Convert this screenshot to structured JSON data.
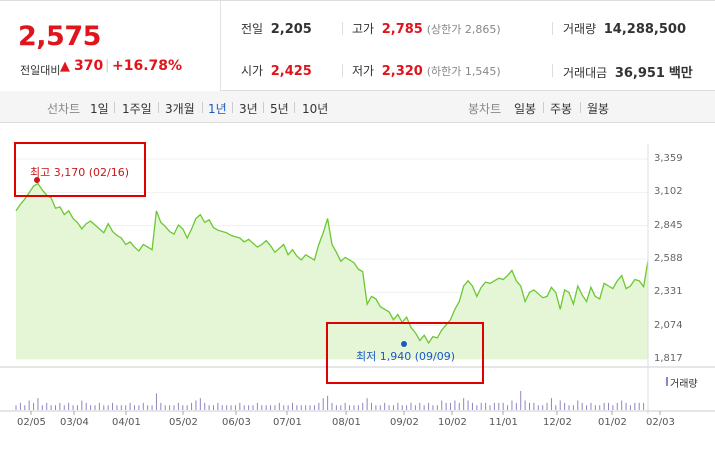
{
  "summary": {
    "price": "2,575",
    "change_label": "전일대비",
    "change_arrow": "▲",
    "change_value": "370",
    "change_separator": "|",
    "change_percent": "+16.78%",
    "prev_close": {
      "label": "전일",
      "value": "2,205"
    },
    "high": {
      "label": "고가",
      "value": "2,785",
      "note": "(상한가 2,865)"
    },
    "volume": {
      "label": "거래량",
      "value": "14,288,500"
    },
    "open": {
      "label": "시가",
      "value": "2,425"
    },
    "low": {
      "label": "저가",
      "value": "2,320",
      "note": "(하한가 1,545)"
    },
    "amount": {
      "label": "거래대금",
      "value": "36,951",
      "unit": "백만"
    }
  },
  "period_bar": {
    "line_label": "선차트",
    "line_periods": [
      "1일",
      "1주일",
      "3개월",
      "1년",
      "3년",
      "5년",
      "10년"
    ],
    "active_period": "1년",
    "candle_label": "봉차트",
    "candle_periods": [
      "일봉",
      "주봉",
      "월봉"
    ]
  },
  "chart_data": {
    "type": "area",
    "y_ticks": [
      "3,359",
      "3,102",
      "2,845",
      "2,588",
      "2,331",
      "2,074",
      "1,817"
    ],
    "ylim": [
      1817,
      3359
    ],
    "x_ticks": [
      "02/05",
      "03/04",
      "04/01",
      "05/02",
      "06/03",
      "07/01",
      "08/01",
      "09/02",
      "10/02",
      "11/01",
      "12/02",
      "01/02",
      "02/03"
    ],
    "high_annotation": "최고 3,170 (02/16)",
    "low_annotation": "최저 1,940 (09/09)",
    "volume_label": "거래량",
    "line_color": "#6cc832",
    "fill_color": "#e4f6d6",
    "series": [
      {
        "values": [
          2960,
          3010,
          3050,
          3100,
          3150,
          3170,
          3120,
          3080,
          3060,
          2980,
          2990,
          2930,
          2960,
          2900,
          2870,
          2820,
          2860,
          2880,
          2850,
          2820,
          2790,
          2860,
          2800,
          2770,
          2750,
          2700,
          2720,
          2680,
          2650,
          2700,
          2680,
          2660,
          2960,
          2870,
          2840,
          2800,
          2780,
          2850,
          2820,
          2750,
          2820,
          2900,
          2930,
          2870,
          2890,
          2830,
          2810,
          2800,
          2790,
          2770,
          2760,
          2750,
          2720,
          2740,
          2710,
          2680,
          2700,
          2730,
          2690,
          2640,
          2670,
          2700,
          2620,
          2660,
          2610,
          2580,
          2620,
          2600,
          2580,
          2700,
          2790,
          2900,
          2700,
          2640,
          2570,
          2600,
          2580,
          2560,
          2510,
          2490,
          2240,
          2300,
          2280,
          2220,
          2200,
          2180,
          2120,
          2160,
          2100,
          2140,
          2060,
          2020,
          1960,
          2000,
          1940,
          1990,
          1980,
          2040,
          2080,
          2120,
          2200,
          2260,
          2380,
          2420,
          2380,
          2300,
          2370,
          2410,
          2400,
          2420,
          2440,
          2430,
          2460,
          2500,
          2420,
          2380,
          2260,
          2330,
          2350,
          2320,
          2290,
          2300,
          2370,
          2330,
          2200,
          2350,
          2330,
          2240,
          2380,
          2310,
          2260,
          2370,
          2300,
          2280,
          2400,
          2380,
          2360,
          2420,
          2460,
          2360,
          2380,
          2430,
          2420,
          2375,
          2575
        ]
      }
    ],
    "volume_values": [
      2,
      3,
      2,
      4,
      3,
      5,
      2,
      3,
      2,
      2,
      3,
      2,
      3,
      2,
      2,
      4,
      3,
      2,
      2,
      3,
      2,
      2,
      3,
      2,
      2,
      2,
      3,
      2,
      2,
      3,
      2,
      2,
      7,
      3,
      2,
      2,
      2,
      3,
      2,
      2,
      3,
      4,
      5,
      3,
      2,
      2,
      3,
      2,
      2,
      2,
      2,
      3,
      2,
      2,
      2,
      3,
      2,
      2,
      2,
      2,
      3,
      2,
      2,
      3,
      2,
      2,
      2,
      2,
      2,
      3,
      5,
      6,
      3,
      2,
      2,
      3,
      2,
      2,
      2,
      3,
      5,
      3,
      2,
      2,
      3,
      2,
      2,
      3,
      2,
      2,
      3,
      2,
      3,
      2,
      3,
      2,
      2,
      4,
      3,
      3,
      4,
      3,
      5,
      4,
      3,
      2,
      3,
      3,
      2,
      3,
      3,
      3,
      2,
      4,
      3,
      8,
      4,
      3,
      3,
      2,
      2,
      3,
      5,
      2,
      4,
      3,
      2,
      2,
      4,
      3,
      2,
      3,
      2,
      2,
      3,
      3,
      2,
      3,
      4,
      3,
      2,
      3,
      3,
      3,
      16
    ]
  }
}
